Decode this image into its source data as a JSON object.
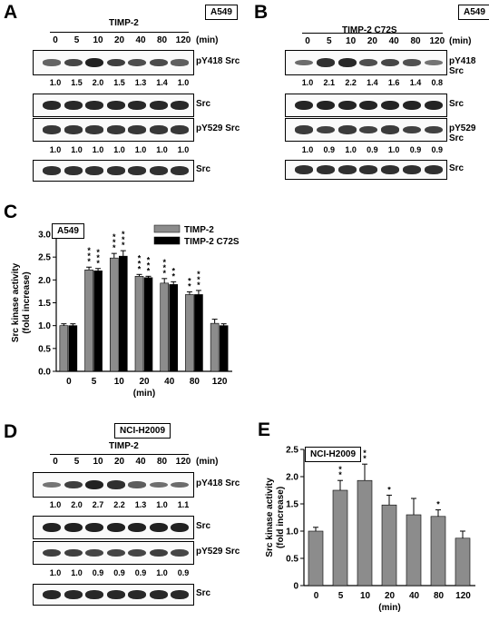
{
  "panels": {
    "A": {
      "letter": "A",
      "cell_line": "A549",
      "treatment": "TIMP-2",
      "time_points": [
        "0",
        "5",
        "10",
        "20",
        "40",
        "80",
        "120"
      ],
      "unit": "(min)",
      "blots": [
        {
          "label": "pY418 Src",
          "quant": [
            "1.0",
            "1.5",
            "2.0",
            "1.5",
            "1.3",
            "1.4",
            "1.0"
          ],
          "intensity": [
            0.45,
            0.65,
            0.9,
            0.7,
            0.6,
            0.62,
            0.48
          ]
        },
        {
          "label": "Src",
          "quant": [],
          "intensity": [
            0.85,
            0.85,
            0.85,
            0.85,
            0.85,
            0.85,
            0.85
          ]
        },
        {
          "label": "pY529 Src",
          "quant": [
            "1.0",
            "1.0",
            "1.0",
            "1.0",
            "1.0",
            "1.0",
            "1.0"
          ],
          "intensity": [
            0.75,
            0.75,
            0.75,
            0.75,
            0.75,
            0.75,
            0.75
          ]
        },
        {
          "label": "Src",
          "quant": [],
          "intensity": [
            0.8,
            0.8,
            0.8,
            0.8,
            0.8,
            0.8,
            0.8
          ]
        }
      ]
    },
    "B": {
      "letter": "B",
      "cell_line": "A549",
      "treatment": "TIMP-2 C72S",
      "time_points": [
        "0",
        "5",
        "10",
        "20",
        "40",
        "80",
        "120"
      ],
      "unit": "(min)",
      "blots": [
        {
          "label": "pY418 Src",
          "quant": [
            "1.0",
            "2.1",
            "2.2",
            "1.4",
            "1.6",
            "1.4",
            "0.8"
          ],
          "intensity": [
            0.4,
            0.8,
            0.85,
            0.6,
            0.65,
            0.58,
            0.35
          ]
        },
        {
          "label": "Src",
          "quant": [],
          "intensity": [
            0.88,
            0.88,
            0.88,
            0.88,
            0.88,
            0.88,
            0.88
          ]
        },
        {
          "label": "pY529 Src",
          "quant": [
            "1.0",
            "0.9",
            "1.0",
            "0.9",
            "1.0",
            "0.9",
            "0.9"
          ],
          "intensity": [
            0.72,
            0.68,
            0.72,
            0.68,
            0.72,
            0.68,
            0.68
          ]
        },
        {
          "label": "Src",
          "quant": [],
          "intensity": [
            0.8,
            0.8,
            0.8,
            0.8,
            0.8,
            0.8,
            0.8
          ]
        }
      ]
    },
    "C": {
      "letter": "C",
      "cell_line": "A549",
      "chart_data": {
        "type": "bar",
        "categories": [
          "0",
          "5",
          "10",
          "20",
          "40",
          "80",
          "120"
        ],
        "series": [
          {
            "name": "TIMP-2",
            "color": "#8c8c8c",
            "values": [
              1.0,
              2.22,
              2.48,
              2.08,
              1.93,
              1.68,
              1.05
            ],
            "errors": [
              0.04,
              0.06,
              0.1,
              0.04,
              0.1,
              0.06,
              0.09
            ],
            "stars": [
              "",
              "***",
              "***",
              "***",
              "***",
              "**",
              ""
            ]
          },
          {
            "name": "TIMP-2 C72S",
            "color": "#000000",
            "values": [
              1.0,
              2.2,
              2.52,
              2.05,
              1.9,
              1.68,
              1.0
            ],
            "errors": [
              0.04,
              0.05,
              0.12,
              0.03,
              0.06,
              0.09,
              0.04
            ],
            "stars": [
              "",
              "***",
              "***",
              "***",
              "**",
              "***",
              ""
            ]
          }
        ],
        "xlabel": "(min)",
        "ylabel_line1": "Src kinase activity",
        "ylabel_line2": "(fold increase)",
        "ylim": [
          0,
          3.0
        ],
        "yticks": [
          "0.0",
          "0.5",
          "1.0",
          "1.5",
          "2.0",
          "2.5",
          "3.0"
        ],
        "legend_position": "top-right"
      }
    },
    "D": {
      "letter": "D",
      "cell_line": "NCI-H2009",
      "treatment": "TIMP-2",
      "time_points": [
        "0",
        "5",
        "10",
        "20",
        "40",
        "80",
        "120"
      ],
      "unit": "(min)",
      "blots": [
        {
          "label": "pY418 Src",
          "quant": [
            "1.0",
            "2.0",
            "2.7",
            "2.2",
            "1.3",
            "1.0",
            "1.1"
          ],
          "intensity": [
            0.35,
            0.7,
            0.9,
            0.8,
            0.5,
            0.38,
            0.4
          ]
        },
        {
          "label": "Src",
          "quant": [],
          "intensity": [
            0.9,
            0.9,
            0.9,
            0.9,
            0.9,
            0.9,
            0.9
          ]
        },
        {
          "label": "pY529 Src",
          "quant": [
            "1.0",
            "1.0",
            "0.9",
            "0.9",
            "0.9",
            "1.0",
            "0.9"
          ],
          "intensity": [
            0.7,
            0.7,
            0.65,
            0.65,
            0.65,
            0.7,
            0.65
          ]
        },
        {
          "label": "Src",
          "quant": [],
          "intensity": [
            0.85,
            0.85,
            0.85,
            0.85,
            0.85,
            0.85,
            0.85
          ]
        }
      ]
    },
    "E": {
      "letter": "E",
      "cell_line": "NCI-H2009",
      "chart_data": {
        "type": "bar",
        "categories": [
          "0",
          "5",
          "10",
          "20",
          "40",
          "80",
          "120"
        ],
        "series": [
          {
            "name": "",
            "color": "#8c8c8c",
            "values": [
              1.0,
              1.75,
              1.93,
              1.48,
              1.3,
              1.27,
              0.87
            ],
            "errors": [
              0.07,
              0.18,
              0.3,
              0.18,
              0.3,
              0.12,
              0.13
            ],
            "stars": [
              "",
              "**",
              "**",
              "*",
              "",
              "*",
              ""
            ]
          }
        ],
        "xlabel": "(min)",
        "ylabel_line1": "Src kinase activity",
        "ylabel_line2": "(fold increase)",
        "ylim": [
          0,
          2.5
        ],
        "yticks": [
          "0",
          "0.5",
          "1.0",
          "1.5",
          "2.0",
          "2.5"
        ]
      }
    }
  }
}
